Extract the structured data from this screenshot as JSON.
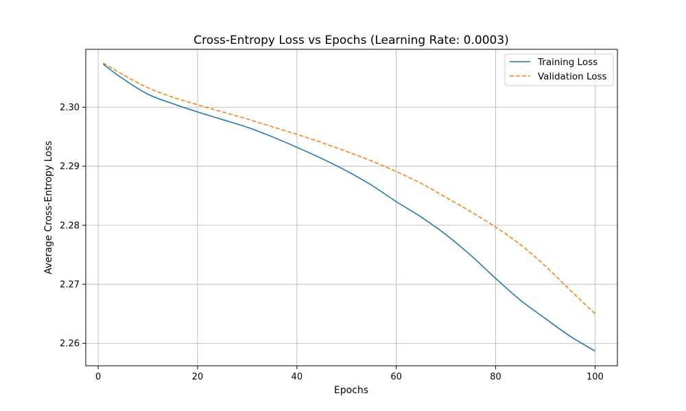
{
  "chart_data": {
    "type": "line",
    "title": "Cross-Entropy Loss vs Epochs (Learning Rate: 0.0003)",
    "xlabel": "Epochs",
    "ylabel": "Average Cross-Entropy Loss",
    "xlim": [
      -2.5,
      104.5
    ],
    "ylim": [
      2.2562,
      2.3098
    ],
    "xticks": [
      0,
      20,
      40,
      60,
      80,
      100
    ],
    "yticks": [
      2.26,
      2.27,
      2.28,
      2.29,
      2.3
    ],
    "xtick_labels": [
      "0",
      "20",
      "40",
      "60",
      "80",
      "100"
    ],
    "ytick_labels": [
      "2.26",
      "2.27",
      "2.28",
      "2.29",
      "2.30"
    ],
    "grid": true,
    "legend_position": "top-right",
    "series": [
      {
        "name": "Training Loss",
        "color": "#1f77b4",
        "style": "solid",
        "points": [
          [
            1,
            2.3073
          ],
          [
            5,
            2.3048
          ],
          [
            10,
            2.3022
          ],
          [
            15,
            2.3006
          ],
          [
            20,
            2.2992
          ],
          [
            25,
            2.2979
          ],
          [
            30,
            2.2966
          ],
          [
            35,
            2.295
          ],
          [
            40,
            2.2932
          ],
          [
            45,
            2.2913
          ],
          [
            50,
            2.2892
          ],
          [
            55,
            2.2868
          ],
          [
            60,
            2.284
          ],
          [
            65,
            2.2814
          ],
          [
            70,
            2.2784
          ],
          [
            75,
            2.2749
          ],
          [
            80,
            2.271
          ],
          [
            85,
            2.2673
          ],
          [
            90,
            2.2642
          ],
          [
            95,
            2.2612
          ],
          [
            100,
            2.2587
          ]
        ]
      },
      {
        "name": "Validation Loss",
        "color": "#ff7f0e",
        "style": "dashed",
        "points": [
          [
            1,
            2.3075
          ],
          [
            5,
            2.3055
          ],
          [
            10,
            2.3033
          ],
          [
            15,
            2.3017
          ],
          [
            20,
            2.3004
          ],
          [
            25,
            2.2992
          ],
          [
            30,
            2.298
          ],
          [
            35,
            2.2967
          ],
          [
            40,
            2.2954
          ],
          [
            45,
            2.294
          ],
          [
            50,
            2.2925
          ],
          [
            55,
            2.2909
          ],
          [
            60,
            2.2891
          ],
          [
            65,
            2.2871
          ],
          [
            70,
            2.2847
          ],
          [
            75,
            2.2823
          ],
          [
            80,
            2.2797
          ],
          [
            85,
            2.2767
          ],
          [
            90,
            2.2731
          ],
          [
            95,
            2.269
          ],
          [
            100,
            2.265
          ]
        ]
      }
    ]
  }
}
